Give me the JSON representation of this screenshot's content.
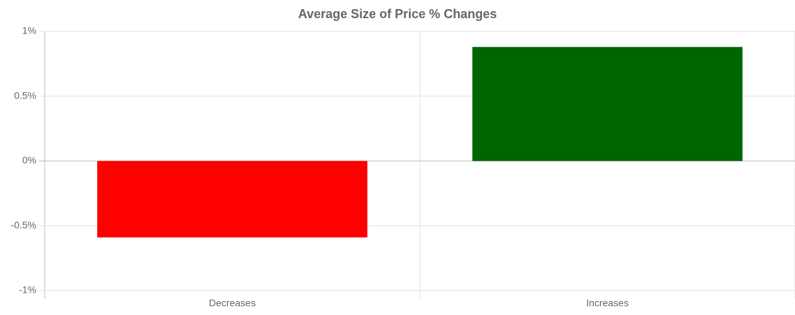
{
  "chart_data": {
    "type": "bar",
    "title": "Average Size of Price % Changes",
    "categories": [
      "Decreases",
      "Increases"
    ],
    "values": [
      -0.59,
      0.88
    ],
    "colors": [
      "#ff0000",
      "#006400"
    ],
    "ylim": [
      -1,
      1
    ],
    "yticks": [
      {
        "value": -1,
        "label": "-1%"
      },
      {
        "value": -0.5,
        "label": "-0.5%"
      },
      {
        "value": 0,
        "label": "0%"
      },
      {
        "value": 0.5,
        "label": "0.5%"
      },
      {
        "value": 1,
        "label": "1%"
      }
    ],
    "grid": true
  }
}
